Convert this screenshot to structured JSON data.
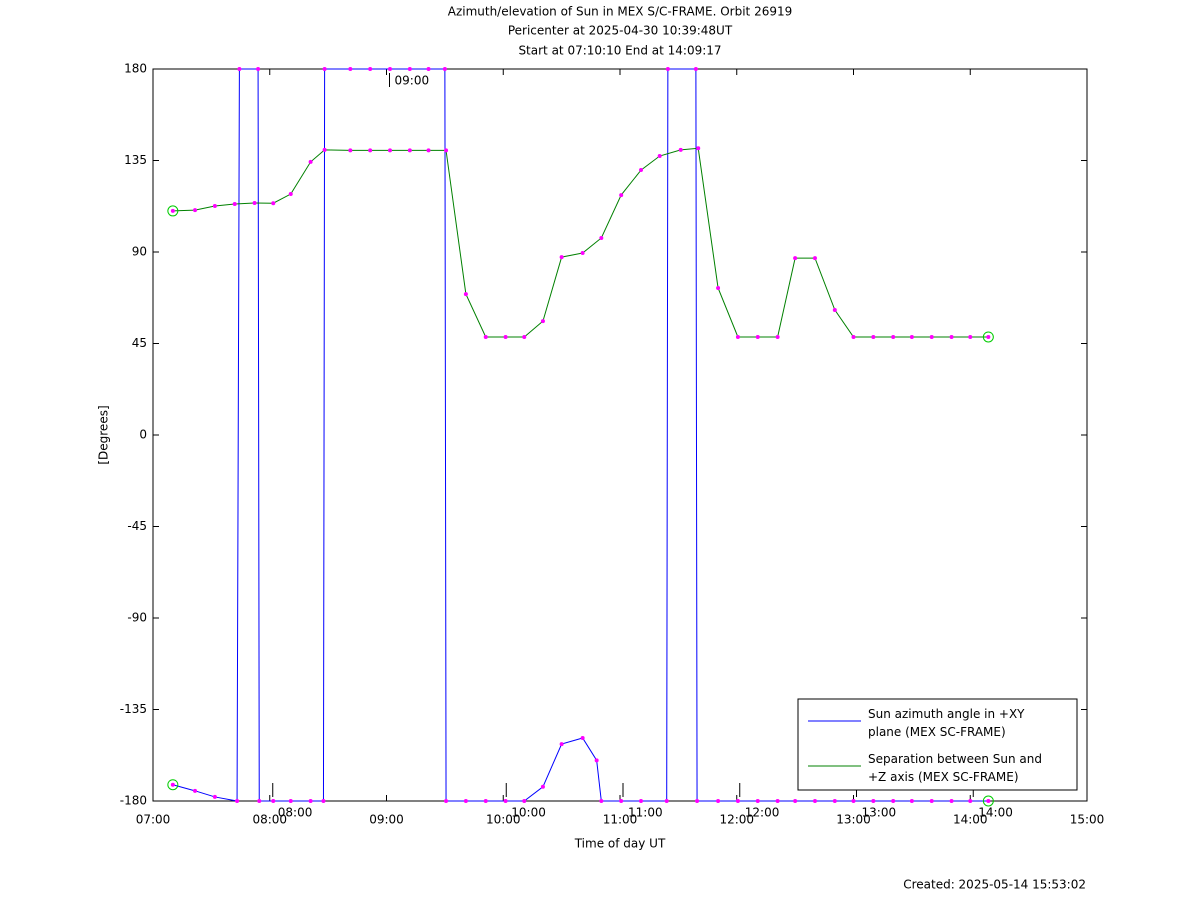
{
  "chart_data": {
    "type": "line",
    "title": "Azimuth/elevation of Sun in MEX S/C-FRAME.  Orbit 26919",
    "subtitle": "Pericenter at 2025-04-30 10:39:48UT",
    "subtitle2": "Start at 07:10:10 End at 14:09:17",
    "x_label": "Time of day UT",
    "y_label": "[Degrees]",
    "footer": "Created: 2025-05-14 15:53:02",
    "xlim": [
      7,
      15
    ],
    "xticks": [
      {
        "value": 7,
        "label": "07:00"
      },
      {
        "value": 8,
        "label": "08:00"
      },
      {
        "value": 9,
        "label": "09:00"
      },
      {
        "value": 10,
        "label": "10:00"
      },
      {
        "value": 11,
        "label": "11:00"
      },
      {
        "value": 12,
        "label": "12:00"
      },
      {
        "value": 13,
        "label": "13:00"
      },
      {
        "value": 14,
        "label": "14:00"
      },
      {
        "value": 15,
        "label": "15:00"
      }
    ],
    "ylim": [
      -180,
      180
    ],
    "yticks": [
      180,
      135,
      90,
      45,
      0,
      -45,
      -90,
      -135,
      -180
    ],
    "legend_position": "lower right",
    "marker_color": "#ff00ff",
    "series": [
      {
        "name": "Sun azimuth angle in +XY plane (MEX SC-FRAME)",
        "color": "#0000ff",
        "x": [
          7.17,
          7.36,
          7.53,
          7.72,
          7.74,
          7.9,
          7.91,
          8.03,
          8.18,
          8.35,
          8.46,
          8.47,
          8.69,
          8.86,
          9.03,
          9.2,
          9.36,
          9.5,
          9.51,
          9.68,
          9.85,
          10.02,
          10.18,
          10.34,
          10.5,
          10.68,
          10.8,
          10.84,
          11.01,
          11.18,
          11.4,
          11.41,
          11.65,
          11.66,
          11.84,
          12.01,
          12.18,
          12.35,
          12.5,
          12.67,
          12.84,
          13.0,
          13.17,
          13.34,
          13.5,
          13.67,
          13.84,
          14.0,
          14.155
        ],
        "values": [
          -172,
          -175,
          -178,
          -180,
          180,
          180,
          -180,
          -180,
          -180,
          -180,
          -180,
          180,
          180,
          180,
          180,
          180,
          180,
          180,
          -180,
          -180,
          -180,
          -180,
          -180,
          -173,
          -152,
          -149,
          -160,
          -180,
          -180,
          -180,
          -180,
          180,
          180,
          -180,
          -180,
          -180,
          -180,
          -180,
          -180,
          -180,
          -180,
          -180,
          -180,
          -180,
          -180,
          -180,
          -180,
          -180,
          -180
        ]
      },
      {
        "name": "Separation between Sun and +Z axis (MEX SC-FRAME)",
        "color": "#008000",
        "x": [
          7.17,
          7.36,
          7.53,
          7.7,
          7.87,
          8.03,
          8.18,
          8.35,
          8.47,
          8.69,
          8.86,
          9.03,
          9.2,
          9.36,
          9.51,
          9.68,
          9.85,
          10.02,
          10.18,
          10.34,
          10.5,
          10.68,
          10.84,
          11.01,
          11.18,
          11.34,
          11.52,
          11.67,
          11.84,
          12.01,
          12.18,
          12.35,
          12.5,
          12.67,
          12.84,
          13.0,
          13.17,
          13.34,
          13.5,
          13.67,
          13.84,
          14.0,
          14.155
        ],
        "values": [
          110.2,
          110.6,
          112.6,
          113.6,
          114.1,
          114,
          118.5,
          134.3,
          140.2,
          140,
          140,
          140,
          140,
          140,
          140,
          69.3,
          48.2,
          48.2,
          48.2,
          56,
          87.5,
          89.5,
          96.9,
          118,
          130.3,
          137.2,
          140.2,
          141,
          72.3,
          48.2,
          48.2,
          48.2,
          87,
          87,
          61.5,
          48.2,
          48.2,
          48.2,
          48.2,
          48.2,
          48.2,
          48.2,
          48.2
        ]
      }
    ],
    "annotations": [
      {
        "x": 8,
        "y": -180,
        "text": "08:00"
      },
      {
        "x": 9,
        "y": 180,
        "text": "09:00"
      },
      {
        "x": 10,
        "y": -180,
        "text": "10:00"
      },
      {
        "x": 11,
        "y": -180,
        "text": "11:00"
      },
      {
        "x": 12,
        "y": -180,
        "text": "12:00"
      },
      {
        "x": 13,
        "y": -180,
        "text": "13:00"
      },
      {
        "x": 14,
        "y": -180,
        "text": "14:00"
      }
    ]
  }
}
